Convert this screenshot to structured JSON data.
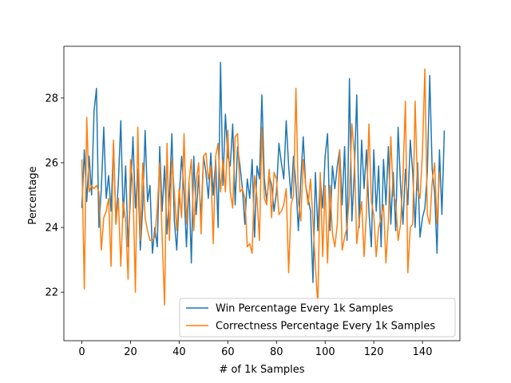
{
  "chart_data": {
    "type": "line",
    "title": "",
    "xlabel": "# of 1k Samples",
    "ylabel": "Percentage",
    "xlim": [
      -7.4,
      155.4
    ],
    "ylim": [
      20.5,
      29.6
    ],
    "xticks": [
      0,
      20,
      40,
      60,
      80,
      100,
      120,
      140
    ],
    "yticks": [
      22,
      24,
      26,
      28
    ],
    "grid": false,
    "legend_position": "lower-right",
    "series": [
      {
        "name": "Win Percentage Every 1k Samples",
        "color": "#1f77b4",
        "values": [
          24.6,
          26.4,
          24.8,
          26.2,
          25.0,
          27.6,
          28.3,
          24.0,
          25.2,
          27.1,
          24.9,
          25.6,
          24.5,
          26.6,
          24.1,
          25.4,
          27.3,
          24.3,
          25.9,
          23.4,
          25.0,
          26.8,
          24.6,
          25.8,
          23.3,
          24.6,
          27.0,
          24.8,
          25.3,
          23.2,
          24.0,
          23.4,
          26.5,
          24.5,
          25.9,
          23.8,
          25.0,
          26.9,
          24.2,
          23.3,
          24.9,
          26.2,
          25.1,
          23.4,
          25.4,
          22.9,
          26.2,
          24.4,
          25.6,
          24.3,
          26.2,
          25.7,
          24.9,
          26.3,
          25.0,
          26.1,
          24.0,
          29.1,
          25.3,
          27.5,
          26.2,
          25.9,
          27.2,
          24.7,
          26.5,
          25.9,
          25.2,
          24.1,
          25.5,
          24.9,
          26.1,
          23.7,
          25.9,
          25.5,
          28.1,
          25.5,
          24.8,
          25.6,
          25.3,
          24.5,
          25.1,
          26.6,
          26.0,
          25.5,
          27.3,
          25.9,
          24.9,
          26.2,
          25.3,
          23.9,
          25.5,
          26.8,
          25.3,
          24.9,
          24.5,
          22.3,
          25.7,
          23.9,
          25.5,
          24.6,
          26.2,
          26.9,
          23.9,
          25.9,
          25.2,
          25.9,
          26.4,
          24.7,
          26.5,
          23.6,
          28.6,
          24.2,
          25.7,
          28.1,
          24.0,
          26.7,
          25.2,
          26.4,
          24.5,
          23.4,
          26.4,
          24.5,
          25.9,
          23.4,
          26.1,
          24.7,
          26.5,
          24.1,
          25.7,
          23.9,
          27.1,
          25.3,
          24.1,
          25.8,
          24.7,
          26.7,
          25.7,
          24.0,
          26.0,
          23.7,
          24.3,
          24.6,
          25.7,
          28.7,
          25.8,
          25.1,
          23.2,
          26.4,
          24.4,
          27.0
        ]
      },
      {
        "name": "Correctness Percentage Every 1k Samples",
        "color": "#ff7f0e",
        "values": [
          26.1,
          22.1,
          27.4,
          25.1,
          25.3,
          25.2,
          25.3,
          25.1,
          23.3,
          24.3,
          24.5,
          24.9,
          22.8,
          26.7,
          24.1,
          24.9,
          22.8,
          24.8,
          24.2,
          22.4,
          26.1,
          25.3,
          22.0,
          27.1,
          23.6,
          26.0,
          24.3,
          23.9,
          23.6,
          23.6,
          23.7,
          24.6,
          26.0,
          23.7,
          21.6,
          26.6,
          23.6,
          26.1,
          25.1,
          23.9,
          25.2,
          24.3,
          26.9,
          24.1,
          25.4,
          26.1,
          23.9,
          25.4,
          26.0,
          23.8,
          26.2,
          26.3,
          25.5,
          25.9,
          23.5,
          26.2,
          26.6,
          25.1,
          26.1,
          25.1,
          27.0,
          25.1,
          24.6,
          26.8,
          26.9,
          25.1,
          25.2,
          24.9,
          23.4,
          23.5,
          23.2,
          25.6,
          24.9,
          23.6,
          27.1,
          24.9,
          24.7,
          25.8,
          24.3,
          25.7,
          25.5,
          24.4,
          24.5,
          24.7,
          25.2,
          22.6,
          24.7,
          25.0,
          28.3,
          24.8,
          24.2,
          26.1,
          25.3,
          24.7,
          25.5,
          24.2,
          22.8,
          21.6,
          25.7,
          23.1,
          25.3,
          22.9,
          25.3,
          23.8,
          23.4,
          24.1,
          26.4,
          23.3,
          23.7,
          24.0,
          25.0,
          27.2,
          26.3,
          23.5,
          24.2,
          24.8,
          23.1,
          24.5,
          27.2,
          24.8,
          24.4,
          23.1,
          24.0,
          24.3,
          24.7,
          22.9,
          24.2,
          26.8,
          25.0,
          24.8,
          23.6,
          24.1,
          25.6,
          27.9,
          22.6,
          24.0,
          24.1,
          27.9,
          25.2,
          24.9,
          26.3,
          28.9,
          24.4,
          24.1,
          25.4,
          26.0,
          24.1,
          25.7
        ]
      }
    ]
  }
}
